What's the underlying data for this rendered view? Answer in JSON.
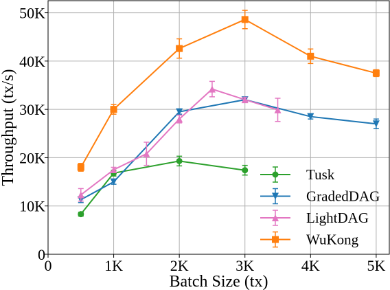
{
  "chart_data": {
    "type": "line",
    "title": "",
    "xlabel": "Batch Size (tx)",
    "ylabel": "Throughput (tx/s)",
    "xlim": [
      0,
      5200
    ],
    "ylim": [
      0,
      52500
    ],
    "grid": true,
    "legend_position": "bottom-right",
    "x_ticks": [
      {
        "value": 0,
        "label": "0"
      },
      {
        "value": 1000,
        "label": "1K"
      },
      {
        "value": 2000,
        "label": "2K"
      },
      {
        "value": 3000,
        "label": "3K"
      },
      {
        "value": 4000,
        "label": "4K"
      },
      {
        "value": 5000,
        "label": "5K"
      }
    ],
    "y_ticks": [
      {
        "value": 0,
        "label": "0"
      },
      {
        "value": 10000,
        "label": "10K"
      },
      {
        "value": 20000,
        "label": "20K"
      },
      {
        "value": 30000,
        "label": "30K"
      },
      {
        "value": 40000,
        "label": "40K"
      },
      {
        "value": 50000,
        "label": "50K"
      }
    ],
    "series": [
      {
        "name": "Tusk",
        "color": "#2ca02c",
        "marker": "circle",
        "x": [
          500,
          1000,
          2000,
          3000
        ],
        "y": [
          8300,
          16800,
          19300,
          17400
        ],
        "err": [
          400,
          600,
          1000,
          1000
        ]
      },
      {
        "name": "GradedDAG",
        "color": "#1f77b4",
        "marker": "triangle-down",
        "x": [
          500,
          1000,
          2000,
          3000,
          4000,
          5000
        ],
        "y": [
          11300,
          15000,
          29500,
          32000,
          28500,
          27000
        ],
        "err": [
          600,
          500,
          500,
          400,
          500,
          1000
        ]
      },
      {
        "name": "LightDAG",
        "color": "#e377c2",
        "marker": "triangle-up",
        "x": [
          500,
          1000,
          1500,
          2000,
          2500,
          3000,
          3500
        ],
        "y": [
          12300,
          17500,
          20800,
          28000,
          34200,
          32000,
          29900
        ],
        "err": [
          1300,
          500,
          2400,
          800,
          1600,
          500,
          2400
        ]
      },
      {
        "name": "WuKong",
        "color": "#ff7f0e",
        "marker": "square",
        "x": [
          500,
          1000,
          2000,
          3000,
          4000,
          5000
        ],
        "y": [
          18000,
          30000,
          42600,
          48600,
          41000,
          37500
        ],
        "err": [
          800,
          1000,
          2000,
          1900,
          1500,
          700
        ]
      }
    ]
  }
}
